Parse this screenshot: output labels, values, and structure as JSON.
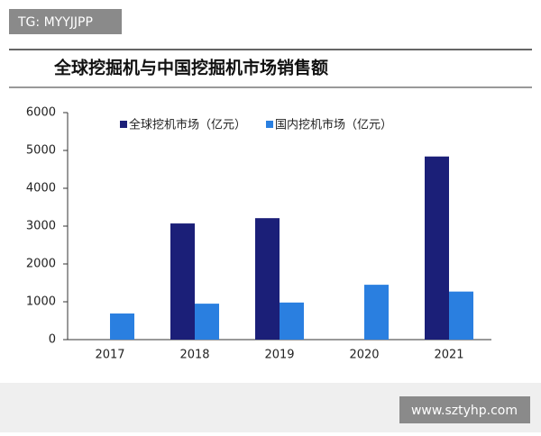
{
  "watermarks": [
    "TG: MYYJJPP",
    "www.sztyhp.com"
  ],
  "chart_data": {
    "type": "bar",
    "title": "全球挖掘机与中国挖掘机市场销售额",
    "categories": [
      "2017",
      "2018",
      "2019",
      "2020",
      "2021"
    ],
    "series": [
      {
        "name": "全球挖机市场（亿元）",
        "color": "#1b1f78",
        "values": [
          null,
          3070,
          3210,
          null,
          4840
        ]
      },
      {
        "name": "国内挖机市场（亿元）",
        "color": "#2a7fe0",
        "values": [
          690,
          950,
          980,
          1450,
          1270
        ]
      }
    ],
    "ylim": [
      0,
      6000
    ],
    "yticks": [
      0,
      1000,
      2000,
      3000,
      4000,
      5000,
      6000
    ],
    "grid": false
  }
}
